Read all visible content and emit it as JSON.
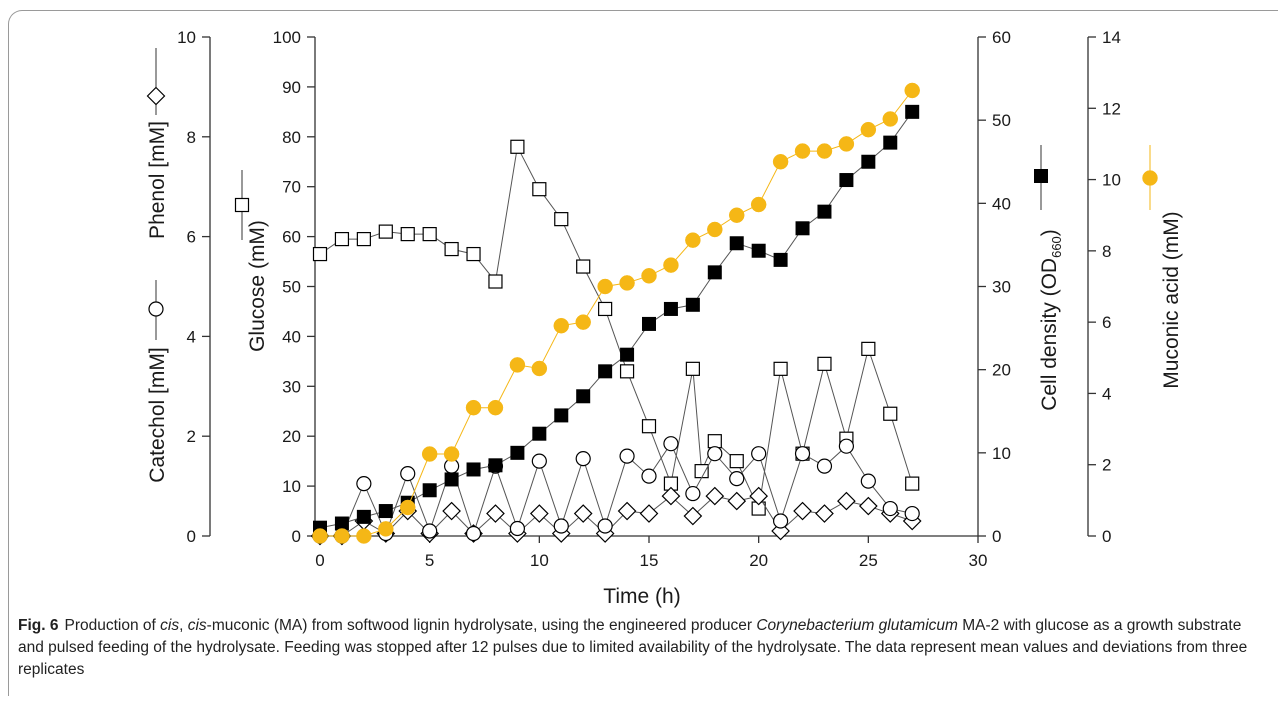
{
  "chart_data": {
    "type": "line",
    "x_axis": {
      "label": "Time (h)",
      "range": [
        0,
        30
      ],
      "ticks": [
        0,
        5,
        10,
        15,
        20,
        25,
        30
      ]
    },
    "y_axes": {
      "catechol_phenol": {
        "label_catechol": "Catechol [mM]",
        "label_phenol": "Phenol [mM]",
        "range": [
          0,
          10
        ],
        "ticks": [
          0,
          2,
          4,
          6,
          8,
          10
        ]
      },
      "glucose": {
        "label": "Glucose (mM)",
        "range": [
          0,
          100
        ],
        "ticks": [
          0,
          10,
          20,
          30,
          40,
          50,
          60,
          70,
          80,
          90,
          100
        ]
      },
      "cell_density": {
        "label": "Cell density (OD",
        "label_sub": "660",
        "label_end": ")",
        "range": [
          0,
          60
        ],
        "ticks": [
          0,
          10,
          20,
          30,
          40,
          50,
          60
        ]
      },
      "muconic_acid": {
        "label": "Muconic acid (mM)",
        "range": [
          0,
          14
        ],
        "ticks": [
          0,
          2,
          4,
          6,
          8,
          10,
          12,
          14
        ]
      }
    },
    "series": [
      {
        "name": "Glucose",
        "axis": "glucose",
        "marker": "open-square",
        "color": "#000000",
        "points": [
          [
            0,
            56.5
          ],
          [
            1,
            59.5
          ],
          [
            2,
            59.5
          ],
          [
            3,
            61
          ],
          [
            4,
            60.5
          ],
          [
            5,
            60.5
          ],
          [
            6,
            57.5
          ],
          [
            7,
            56.5
          ],
          [
            8,
            51
          ],
          [
            9,
            78
          ],
          [
            10,
            69.5
          ],
          [
            11,
            63.5
          ],
          [
            12,
            54
          ],
          [
            13,
            45.5
          ],
          [
            14,
            33
          ],
          [
            15,
            22
          ],
          [
            16,
            10.5
          ],
          [
            17,
            33.5
          ],
          [
            17.4,
            13
          ],
          [
            18,
            19
          ],
          [
            19,
            15
          ],
          [
            20,
            5.5
          ],
          [
            21,
            33.5
          ],
          [
            22,
            16.5
          ],
          [
            23,
            34.5
          ],
          [
            24,
            19.5
          ],
          [
            25,
            37.5
          ],
          [
            26,
            24.5
          ],
          [
            27,
            10.5
          ]
        ]
      },
      {
        "name": "Cell density",
        "axis": "cell_density",
        "marker": "filled-square",
        "color": "#000000",
        "points": [
          [
            0,
            1
          ],
          [
            1,
            1.5
          ],
          [
            2,
            2.3
          ],
          [
            3,
            3
          ],
          [
            4,
            4
          ],
          [
            5,
            5.5
          ],
          [
            6,
            6.8
          ],
          [
            7,
            8
          ],
          [
            8,
            8.5
          ],
          [
            9,
            10
          ],
          [
            10,
            12.3
          ],
          [
            11,
            14.5
          ],
          [
            12,
            16.8
          ],
          [
            13,
            19.8
          ],
          [
            14,
            21.8
          ],
          [
            15,
            25.5
          ],
          [
            16,
            27.3
          ],
          [
            17,
            27.8
          ],
          [
            18,
            31.7
          ],
          [
            19,
            35.2
          ],
          [
            20,
            34.3
          ],
          [
            21,
            33.2
          ],
          [
            22,
            37
          ],
          [
            23,
            39
          ],
          [
            24,
            42.8
          ],
          [
            25,
            45
          ],
          [
            26,
            47.3
          ],
          [
            27,
            51
          ]
        ]
      },
      {
        "name": "Muconic acid",
        "axis": "muconic_acid",
        "marker": "filled-circle",
        "color": "#F5B716",
        "points": [
          [
            0,
            0
          ],
          [
            1,
            0
          ],
          [
            2,
            0
          ],
          [
            3,
            0.2
          ],
          [
            4,
            0.8
          ],
          [
            5,
            2.3
          ],
          [
            6,
            2.3
          ],
          [
            7,
            3.6
          ],
          [
            8,
            3.6
          ],
          [
            9,
            4.8
          ],
          [
            10,
            4.7
          ],
          [
            11,
            5.9
          ],
          [
            12,
            6
          ],
          [
            13,
            7
          ],
          [
            14,
            7.1
          ],
          [
            15,
            7.3
          ],
          [
            16,
            7.6
          ],
          [
            17,
            8.3
          ],
          [
            18,
            8.6
          ],
          [
            19,
            9
          ],
          [
            20,
            9.3
          ],
          [
            21,
            10.5
          ],
          [
            22,
            10.8
          ],
          [
            23,
            10.8
          ],
          [
            24,
            11
          ],
          [
            25,
            11.4
          ],
          [
            26,
            11.7
          ],
          [
            27,
            12.5
          ]
        ]
      },
      {
        "name": "Catechol",
        "axis": "catechol_phenol",
        "marker": "open-circle",
        "color": "#000000",
        "points": [
          [
            0,
            0
          ],
          [
            1,
            0
          ],
          [
            2,
            1.05
          ],
          [
            3,
            0.05
          ],
          [
            4,
            1.25
          ],
          [
            5,
            0.1
          ],
          [
            6,
            1.4
          ],
          [
            7,
            0.05
          ],
          [
            8,
            1.4
          ],
          [
            9,
            0.15
          ],
          [
            10,
            1.5
          ],
          [
            11,
            0.2
          ],
          [
            12,
            1.55
          ],
          [
            13,
            0.2
          ],
          [
            14,
            1.6
          ],
          [
            15,
            1.2
          ],
          [
            16,
            1.85
          ],
          [
            17,
            0.85
          ],
          [
            18,
            1.65
          ],
          [
            19,
            1.15
          ],
          [
            20,
            1.65
          ],
          [
            21,
            0.3
          ],
          [
            22,
            1.65
          ],
          [
            23,
            1.4
          ],
          [
            24,
            1.8
          ],
          [
            25,
            1.1
          ],
          [
            26,
            0.55
          ],
          [
            27,
            0.45
          ]
        ]
      },
      {
        "name": "Phenol",
        "axis": "catechol_phenol",
        "marker": "open-diamond",
        "color": "#000000",
        "points": [
          [
            0,
            0
          ],
          [
            1,
            0
          ],
          [
            2,
            0.3
          ],
          [
            3,
            0.05
          ],
          [
            4,
            0.5
          ],
          [
            5,
            0.05
          ],
          [
            6,
            0.5
          ],
          [
            7,
            0.05
          ],
          [
            8,
            0.45
          ],
          [
            9,
            0.05
          ],
          [
            10,
            0.45
          ],
          [
            11,
            0.05
          ],
          [
            12,
            0.45
          ],
          [
            13,
            0.05
          ],
          [
            14,
            0.5
          ],
          [
            15,
            0.45
          ],
          [
            16,
            0.8
          ],
          [
            17,
            0.4
          ],
          [
            18,
            0.8
          ],
          [
            19,
            0.7
          ],
          [
            20,
            0.8
          ],
          [
            21,
            0.1
          ],
          [
            22,
            0.5
          ],
          [
            23,
            0.45
          ],
          [
            24,
            0.7
          ],
          [
            25,
            0.6
          ],
          [
            26,
            0.45
          ],
          [
            27,
            0.3
          ]
        ]
      }
    ]
  },
  "caption": {
    "label": "Fig. 6",
    "t1": "Production of ",
    "i1": "cis",
    "t2": ", ",
    "i2": "cis",
    "t3": "-muconic (MA) from softwood lignin hydrolysate, using the engineered producer ",
    "i3": "Corynebacterium glutamicum",
    "t4": " MA-2 with glucose as a growth substrate and pulsed feeding of the hydrolysate. Feeding was stopped after 12 pulses due to limited availability of the hydrolysate. The data represent mean values and deviations from three replicates"
  }
}
